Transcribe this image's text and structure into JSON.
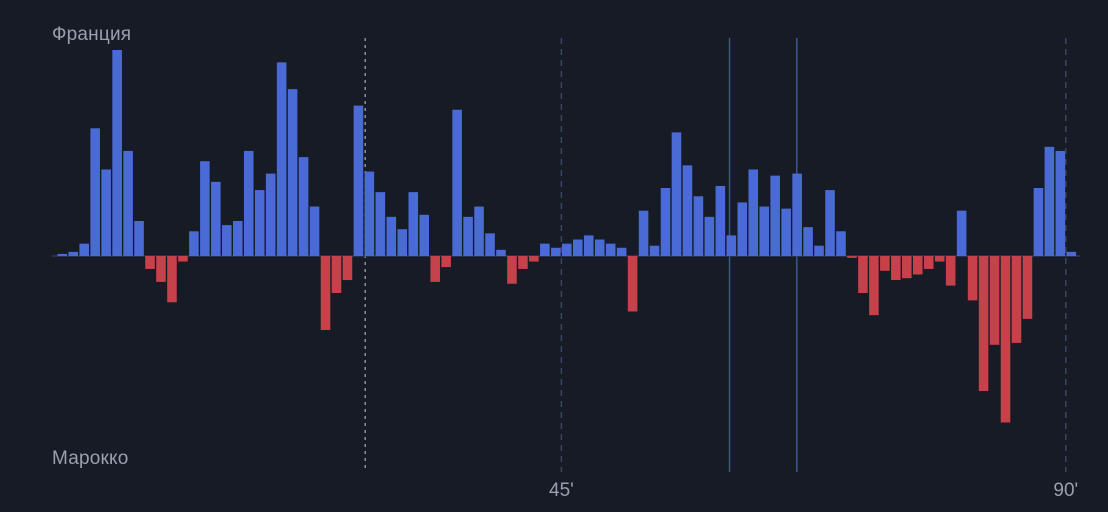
{
  "teams": {
    "home": "Франция",
    "away": "Марокко"
  },
  "colors": {
    "home": "#4a6bd6",
    "away": "#c7414a",
    "background": "#161b26",
    "baseline": "#2c3a5e",
    "text": "#9aa0ab"
  },
  "chart_data": {
    "type": "bar",
    "x_label": "minute",
    "xlim": [
      0,
      91
    ],
    "ylim": [
      -100,
      100
    ],
    "x_ticks": [
      {
        "minute": 45,
        "label": "45'"
      },
      {
        "minute": 90,
        "label": "90'"
      }
    ],
    "markers": [
      {
        "minute": 27.5,
        "style": "dotted"
      },
      {
        "minute": 45,
        "style": "dashed"
      },
      {
        "minute": 60,
        "style": "solid"
      },
      {
        "minute": 66,
        "style": "solid"
      },
      {
        "minute": 90,
        "style": "dashed"
      }
    ],
    "values": [
      1,
      2,
      6,
      62,
      42,
      100,
      51,
      17,
      -7,
      -14,
      -25,
      -3,
      12,
      46,
      36,
      15,
      17,
      51,
      32,
      40,
      94,
      81,
      48,
      24,
      -40,
      -20,
      -13,
      73,
      41,
      31,
      19,
      13,
      31,
      20,
      -14,
      -6,
      71,
      19,
      24,
      11,
      3,
      -15,
      -7,
      -3,
      6,
      4,
      6,
      8,
      10,
      8,
      6,
      4,
      -30,
      22,
      5,
      33,
      60,
      44,
      29,
      19,
      34,
      10,
      26,
      42,
      24,
      39,
      23,
      40,
      14,
      5,
      32,
      12,
      -1,
      -20,
      -32,
      -8,
      -13,
      -12,
      -10,
      -7,
      -3,
      -16,
      22,
      -24,
      -73,
      -48,
      -90,
      -47,
      -34,
      33,
      53,
      51,
      2
    ]
  }
}
